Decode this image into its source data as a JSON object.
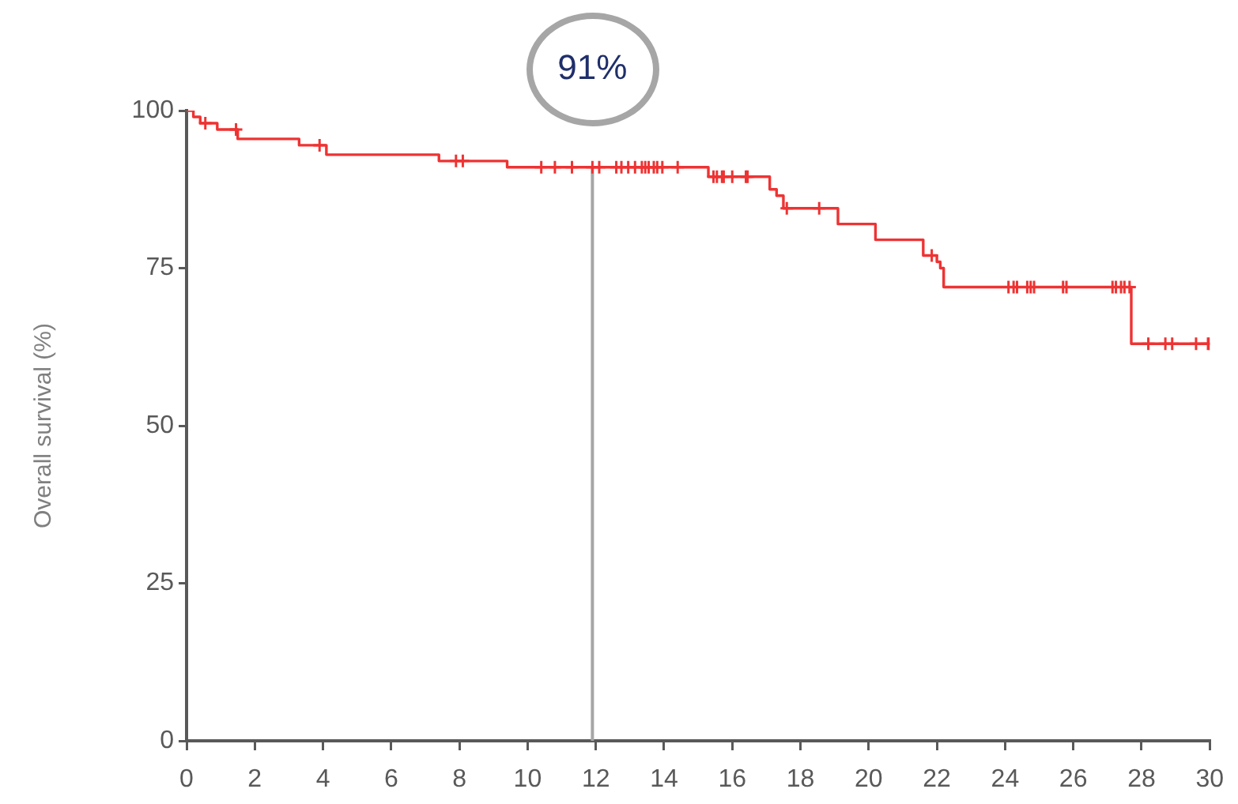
{
  "chart_data": {
    "type": "step",
    "ylabel": "Overall survival (%)",
    "xlim": [
      0,
      30
    ],
    "xticks": [
      0,
      2,
      4,
      6,
      8,
      10,
      12,
      14,
      16,
      18,
      20,
      22,
      24,
      26,
      28,
      30
    ],
    "ylim": [
      0,
      100
    ],
    "yticks": [
      0,
      25,
      50,
      75,
      100
    ],
    "series": [
      {
        "color": "#ee3333",
        "marker": "none",
        "x": [
          0,
          0.2,
          0.4,
          0.9,
          1.5,
          3.3,
          4.1,
          7.4,
          9.4,
          15.3,
          17.1,
          17.3,
          17.5,
          19.1,
          20.2,
          21.6,
          22.0,
          22.1,
          22.2,
          27.7,
          30
        ],
        "values": [
          100,
          99,
          98,
          97,
          95.5,
          94.5,
          93,
          92,
          91,
          89.5,
          87.5,
          86.5,
          84.5,
          82,
          79.5,
          77,
          76,
          75,
          72,
          63,
          63
        ]
      },
      {
        "type": "scatter",
        "color": "#ee3333",
        "marker": "cross",
        "x": [
          0.55,
          1.45,
          3.9,
          7.9,
          8.1,
          10.4,
          10.8,
          11.3,
          11.9,
          12.1,
          12.6,
          12.75,
          12.95,
          13.15,
          13.35,
          13.45,
          13.55,
          13.7,
          13.8,
          13.95,
          14.4,
          15.45,
          15.55,
          15.7,
          15.75,
          16,
          16.4,
          16.45,
          17.6,
          18.55,
          21.85,
          24.1,
          24.25,
          24.35,
          24.65,
          24.75,
          24.85,
          25.7,
          25.8,
          27.15,
          27.25,
          27.4,
          27.5,
          27.65,
          28.2,
          28.7,
          28.9,
          29.6,
          29.95,
          30
        ],
        "values": [
          98,
          97,
          94.5,
          92,
          92,
          91,
          91,
          91,
          91,
          91,
          91,
          91,
          91,
          91,
          91,
          91,
          91,
          91,
          91,
          91,
          91,
          89.5,
          89.5,
          89.5,
          89.5,
          89.5,
          89.5,
          89.5,
          84.5,
          84.5,
          77,
          72,
          72,
          72,
          72,
          72,
          72,
          72,
          72,
          72,
          72,
          72,
          72,
          72,
          63,
          63,
          63,
          63,
          63,
          63
        ]
      }
    ],
    "ref_lines": [
      {
        "axis": "x",
        "value": 11.9,
        "color": "#a6a6a6"
      }
    ],
    "annotations": [
      {
        "text": "91%",
        "x": 11.9,
        "y": 91
      }
    ]
  }
}
